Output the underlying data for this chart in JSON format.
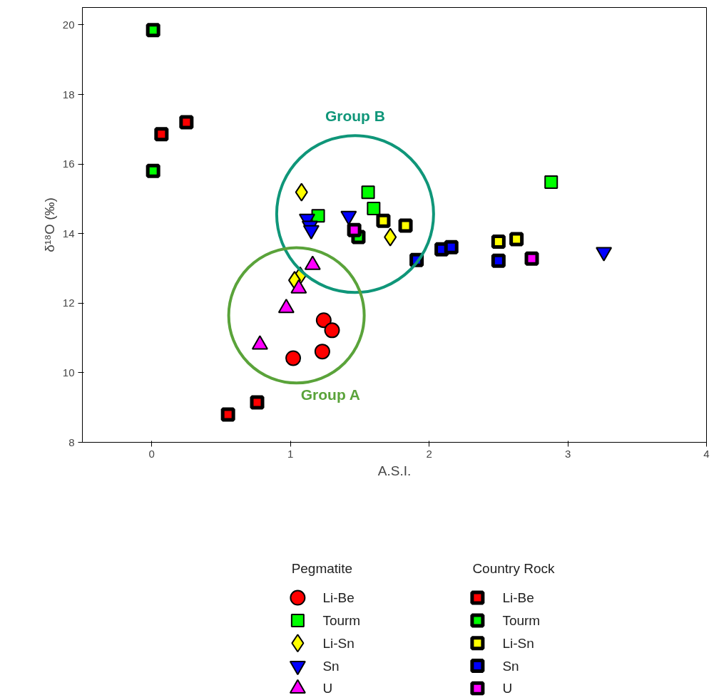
{
  "chart_data": {
    "type": "scatter",
    "xlabel": "A.S.I.",
    "ylabel": "δ¹⁸O (‰)",
    "xlim": [
      -0.5,
      4
    ],
    "ylim": [
      8,
      20.5
    ],
    "xticks": [
      0,
      1,
      2,
      3,
      4
    ],
    "yticks": [
      8,
      10,
      12,
      14,
      16,
      18,
      20
    ],
    "grid": false,
    "legend": "bottom",
    "legend_title": [
      "Pegmatite",
      "Country Rock"
    ],
    "annotations": [
      "Group B",
      "Group A"
    ],
    "series": [
      {
        "name": "Li-Be",
        "color": "#ff0000",
        "marker": "circle",
        "x": [
          1.02,
          1.23,
          1.24,
          1.3
        ],
        "values": [
          10.42,
          10.61,
          11.51,
          11.22
        ]
      },
      {
        "name": "Tourm",
        "color": "#00ff00",
        "marker": "square",
        "x": [
          1.2,
          1.56,
          1.6,
          2.88
        ],
        "values": [
          14.51,
          15.19,
          14.72,
          15.48
        ]
      },
      {
        "name": "Li-Sn",
        "color": "#ffff00",
        "marker": "diamond",
        "x": [
          1.08,
          1.72,
          1.07,
          1.03
        ],
        "values": [
          15.19,
          13.9,
          12.79,
          12.66
        ]
      },
      {
        "name": "Sn",
        "color": "#0000ff",
        "marker": "triangle",
        "x": [
          1.12,
          1.14,
          1.15,
          1.42,
          3.26
        ],
        "values": [
          14.43,
          14.23,
          14.1,
          14.51,
          13.47
        ]
      },
      {
        "name": "U",
        "color": "#ff00ff",
        "marker": "triangle",
        "x": [
          1.16,
          1.06,
          0.97,
          0.78
        ],
        "values": [
          13.1,
          12.42,
          11.86,
          10.81
        ]
      },
      {
        "name": "Li-Be",
        "color": "#ff0000",
        "marker": "square",
        "x": [
          0.07,
          0.25,
          0.76,
          0.55
        ],
        "values": [
          16.86,
          17.2,
          9.15,
          8.8
        ]
      },
      {
        "name": "Tourm",
        "color": "#00ff00",
        "marker": "square",
        "x": [
          0.01,
          0.01,
          1.49
        ],
        "values": [
          19.85,
          15.8,
          13.9
        ]
      },
      {
        "name": "Li-Sn",
        "color": "#ffff00",
        "marker": "square",
        "x": [
          1.67,
          1.83,
          2.5,
          2.63
        ],
        "values": [
          14.37,
          14.23,
          13.77,
          13.84
        ]
      },
      {
        "name": "Sn",
        "color": "#0000ff",
        "marker": "square",
        "x": [
          1.91,
          2.09,
          2.16,
          2.5
        ],
        "values": [
          13.24,
          13.55,
          13.61,
          13.22
        ]
      },
      {
        "name": "U",
        "color": "#ff00ff",
        "marker": "square",
        "x": [
          1.46,
          2.74
        ],
        "values": [
          14.1,
          13.28
        ]
      }
    ]
  }
}
